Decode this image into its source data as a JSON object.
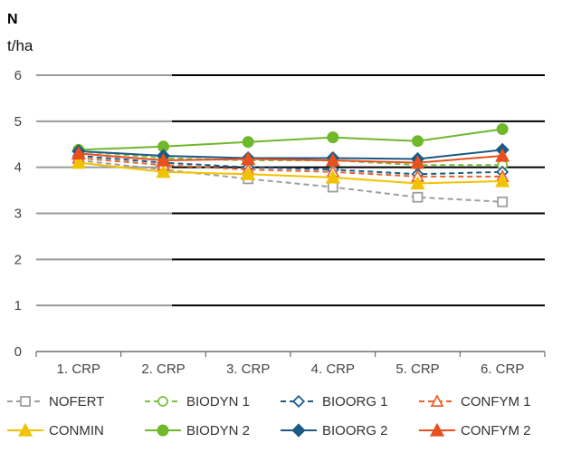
{
  "chart_data": {
    "type": "line",
    "panel_label": "N",
    "ylabel": "t/ha",
    "categories": [
      "1. CRP",
      "2. CRP",
      "3. CRP",
      "4. CRP",
      "5. CRP",
      "6. CRP"
    ],
    "ylim": [
      0,
      6
    ],
    "yticks": [
      "0",
      "1",
      "2",
      "3",
      "4",
      "5",
      "6"
    ],
    "grid": true,
    "legend_position": "bottom",
    "series": [
      {
        "name": "NOFERT",
        "color": "#9e9e9e",
        "dashed": true,
        "marker": "square",
        "filled": false,
        "values": [
          4.15,
          3.95,
          3.75,
          3.57,
          3.35,
          3.25
        ]
      },
      {
        "name": "BIODYN 1",
        "color": "#7cc242",
        "dashed": true,
        "marker": "circle",
        "filled": false,
        "values": [
          4.35,
          4.2,
          4.15,
          4.15,
          4.05,
          4.05
        ]
      },
      {
        "name": "BIOORG 1",
        "color": "#1a5e8a",
        "dashed": true,
        "marker": "diamond",
        "filled": false,
        "values": [
          4.25,
          4.1,
          4.0,
          3.95,
          3.85,
          3.9
        ]
      },
      {
        "name": "CONFYM 1",
        "color": "#e8652e",
        "dashed": true,
        "marker": "triangle",
        "filled": false,
        "values": [
          4.2,
          4.05,
          3.95,
          3.9,
          3.8,
          3.8
        ]
      },
      {
        "name": "CONMIN",
        "color": "#f2c200",
        "dashed": false,
        "marker": "triangle",
        "filled": true,
        "values": [
          4.1,
          3.9,
          3.85,
          3.78,
          3.65,
          3.7
        ]
      },
      {
        "name": "BIODYN 2",
        "color": "#6fb82c",
        "dashed": false,
        "marker": "circle",
        "filled": true,
        "values": [
          4.38,
          4.45,
          4.55,
          4.65,
          4.57,
          4.83
        ]
      },
      {
        "name": "BIOORG 2",
        "color": "#1b5a85",
        "dashed": false,
        "marker": "diamond",
        "filled": true,
        "values": [
          4.35,
          4.25,
          4.2,
          4.2,
          4.18,
          4.38
        ]
      },
      {
        "name": "CONFYM 2",
        "color": "#e8501e",
        "dashed": false,
        "marker": "triangle",
        "filled": true,
        "values": [
          4.3,
          4.15,
          4.18,
          4.15,
          4.1,
          4.25
        ]
      }
    ]
  }
}
